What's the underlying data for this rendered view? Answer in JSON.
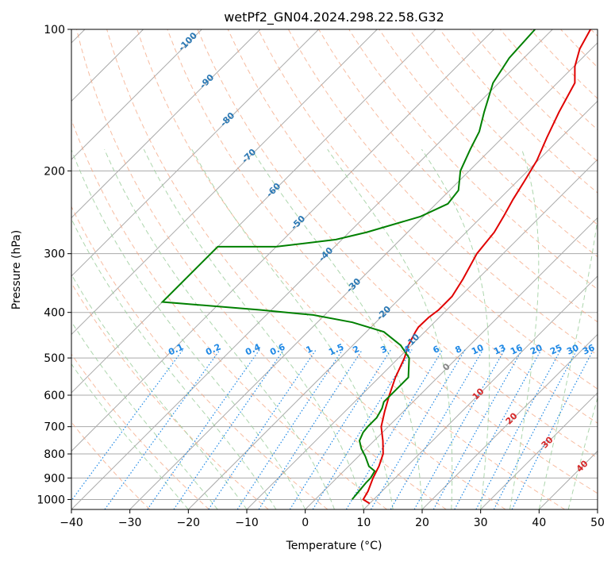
{
  "chart_data": {
    "type": "line",
    "subtype": "skew-t log-p diagram",
    "title": "wetPf2_GN04.2024.298.22.58.G32",
    "xlabel": "Temperature (°C)",
    "ylabel": "Pressure (hPa)",
    "xlim": [
      -40,
      50
    ],
    "ylim": [
      1050,
      100
    ],
    "yscale": "log",
    "grid": true,
    "x_ticks": [
      -40,
      -30,
      -20,
      -10,
      0,
      10,
      20,
      30,
      40,
      50
    ],
    "y_ticks": [
      100,
      200,
      300,
      400,
      500,
      600,
      700,
      800,
      900,
      1000
    ],
    "series": [
      {
        "role": "temperature",
        "color": "#e00000",
        "points": [
          {
            "p": 1020,
            "t": 10.0
          },
          {
            "p": 1000,
            "t": 8.2
          },
          {
            "p": 960,
            "t": 7.6
          },
          {
            "p": 900,
            "t": 6.2
          },
          {
            "p": 850,
            "t": 5.2
          },
          {
            "p": 800,
            "t": 3.8
          },
          {
            "p": 750,
            "t": 1.5
          },
          {
            "p": 700,
            "t": -1.2
          },
          {
            "p": 650,
            "t": -3.2
          },
          {
            "p": 600,
            "t": -5.2
          },
          {
            "p": 550,
            "t": -7.2
          },
          {
            "p": 500,
            "t": -9.0
          },
          {
            "p": 470,
            "t": -10.5
          },
          {
            "p": 440,
            "t": -11.6
          },
          {
            "p": 430,
            "t": -11.9
          },
          {
            "p": 410,
            "t": -11.8
          },
          {
            "p": 395,
            "t": -11.4
          },
          {
            "p": 370,
            "t": -11.4
          },
          {
            "p": 340,
            "t": -12.5
          },
          {
            "p": 300,
            "t": -14.5
          },
          {
            "p": 270,
            "t": -15.2
          },
          {
            "p": 250,
            "t": -16.3
          },
          {
            "p": 230,
            "t": -17.6
          },
          {
            "p": 210,
            "t": -18.8
          },
          {
            "p": 190,
            "t": -20.2
          },
          {
            "p": 170,
            "t": -22.4
          },
          {
            "p": 150,
            "t": -24.7
          },
          {
            "p": 130,
            "t": -27.0
          },
          {
            "p": 120,
            "t": -29.8
          },
          {
            "p": 110,
            "t": -32.0
          },
          {
            "p": 100,
            "t": -33.5
          }
        ]
      },
      {
        "role": "dewpoint",
        "color": "#008000",
        "points": [
          {
            "p": 1000,
            "t": 6.3
          },
          {
            "p": 950,
            "t": 6.0
          },
          {
            "p": 920,
            "t": 5.8
          },
          {
            "p": 900,
            "t": 5.8
          },
          {
            "p": 870,
            "t": 5.3
          },
          {
            "p": 850,
            "t": 3.5
          },
          {
            "p": 810,
            "t": 1.2
          },
          {
            "p": 780,
            "t": -0.8
          },
          {
            "p": 750,
            "t": -2.5
          },
          {
            "p": 720,
            "t": -3.3
          },
          {
            "p": 700,
            "t": -3.5
          },
          {
            "p": 670,
            "t": -3.5
          },
          {
            "p": 640,
            "t": -4.2
          },
          {
            "p": 620,
            "t": -5.0
          },
          {
            "p": 580,
            "t": -5.0
          },
          {
            "p": 550,
            "t": -5.0
          },
          {
            "p": 500,
            "t": -8.2
          },
          {
            "p": 470,
            "t": -11.8
          },
          {
            "p": 440,
            "t": -17.0
          },
          {
            "p": 420,
            "t": -24.0
          },
          {
            "p": 405,
            "t": -32.0
          },
          {
            "p": 395,
            "t": -42.0
          },
          {
            "p": 380,
            "t": -60.0
          },
          {
            "p": 290,
            "t": -60.0
          },
          {
            "p": 290,
            "t": -50.0
          },
          {
            "p": 280,
            "t": -41.0
          },
          {
            "p": 270,
            "t": -37.0
          },
          {
            "p": 250,
            "t": -30.5
          },
          {
            "p": 235,
            "t": -28.0
          },
          {
            "p": 220,
            "t": -28.5
          },
          {
            "p": 200,
            "t": -31.5
          },
          {
            "p": 180,
            "t": -33.5
          },
          {
            "p": 165,
            "t": -35.0
          },
          {
            "p": 150,
            "t": -37.5
          },
          {
            "p": 130,
            "t": -41.0
          },
          {
            "p": 115,
            "t": -42.5
          },
          {
            "p": 100,
            "t": -43.0
          }
        ]
      }
    ],
    "dry_adiabat_labels": [
      "-100",
      "-90",
      "-80",
      "-70",
      "-60",
      "-50",
      "-40",
      "-30",
      "-20",
      "-10"
    ],
    "moist_adiabat_labels": [
      "0",
      "10",
      "20",
      "30",
      "40"
    ],
    "mixing_ratio_labels": [
      "0.1",
      "0.2",
      "0.4",
      "0.6",
      "1",
      "1.5",
      "2",
      "3",
      "4",
      "6",
      "8",
      "10",
      "13",
      "16",
      "20",
      "25",
      "30",
      "36"
    ],
    "colors": {
      "isotherm": "#aaaaaa",
      "isobar": "#aaaaaa",
      "dry_adiabat": "#f4a582",
      "moist_adiabat": "#9fcf9f",
      "mixing_ratio": "#1e88e5",
      "dry_label": "#2a78b4",
      "mixing_label": "#1e88e5",
      "moist_label_neg": "#888888",
      "moist_label_pos": "#d62728",
      "background_curve": "#d2b48c"
    }
  }
}
